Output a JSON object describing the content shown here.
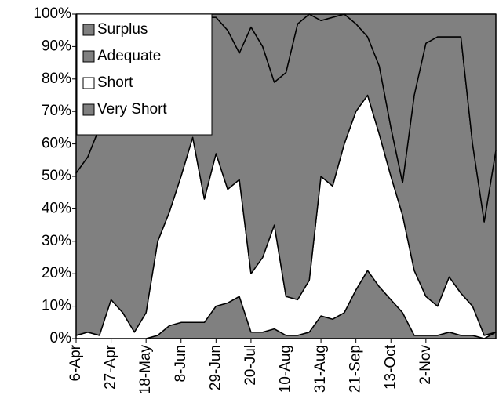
{
  "chart_data": {
    "type": "stacked-area-100",
    "categories": [
      "6-Apr",
      null,
      null,
      "27-Apr",
      null,
      null,
      "18-May",
      null,
      null,
      "8-Jun",
      null,
      null,
      "29-Jun",
      null,
      null,
      "20-Jul",
      null,
      null,
      "10-Aug",
      null,
      null,
      "31-Aug",
      null,
      null,
      "21-Sep",
      null,
      null,
      "13-Oct",
      null,
      null,
      "2-Nov",
      null,
      null,
      null,
      null,
      null,
      null
    ],
    "series": [
      {
        "name": "Very Short",
        "color": "#808080",
        "values": [
          0,
          0,
          0,
          0,
          0,
          0,
          0,
          1,
          4,
          5,
          5,
          5,
          10,
          11,
          13,
          2,
          2,
          3,
          1,
          1,
          2,
          7,
          6,
          8,
          15,
          21,
          16,
          12,
          8,
          1,
          1,
          1,
          2,
          1,
          1,
          0,
          2
        ]
      },
      {
        "name": "Short",
        "color": "#ffffff",
        "values": [
          1,
          2,
          1,
          12,
          8,
          2,
          8,
          29,
          35,
          45,
          57,
          38,
          47,
          35,
          36,
          18,
          23,
          32,
          12,
          11,
          16,
          43,
          41,
          52,
          55,
          54,
          47,
          38,
          30,
          20,
          12,
          9,
          17,
          13,
          9,
          1,
          0
        ]
      },
      {
        "name": "Adequate",
        "color": "#808080",
        "values": [
          50,
          54,
          64,
          60,
          70,
          81,
          79,
          60,
          54,
          45,
          35,
          56,
          42,
          49,
          39,
          76,
          65,
          44,
          69,
          85,
          82,
          48,
          52,
          40,
          27,
          18,
          21,
          15,
          10,
          54,
          78,
          83,
          74,
          79,
          50,
          35,
          56
        ]
      },
      {
        "name": "Surplus",
        "color": "#808080",
        "values": [
          49,
          44,
          35,
          28,
          22,
          17,
          13,
          10,
          7,
          5,
          3,
          1,
          1,
          5,
          12,
          4,
          10,
          21,
          18,
          3,
          0,
          2,
          1,
          0,
          3,
          7,
          16,
          35,
          52,
          25,
          9,
          7,
          7,
          7,
          40,
          64,
          42
        ]
      }
    ],
    "ylim": [
      0,
      100
    ],
    "yticks": [
      {
        "value": 0,
        "label": "0%"
      },
      {
        "value": 10,
        "label": "10%"
      },
      {
        "value": 20,
        "label": "20%"
      },
      {
        "value": 30,
        "label": "30%"
      },
      {
        "value": 40,
        "label": "40%"
      },
      {
        "value": 50,
        "label": "50%"
      },
      {
        "value": 60,
        "label": "60%"
      },
      {
        "value": 70,
        "label": "70%"
      },
      {
        "value": 80,
        "label": "80%"
      },
      {
        "value": 90,
        "label": "90%"
      },
      {
        "value": 100,
        "label": "100%"
      }
    ],
    "legend": "top-left"
  }
}
